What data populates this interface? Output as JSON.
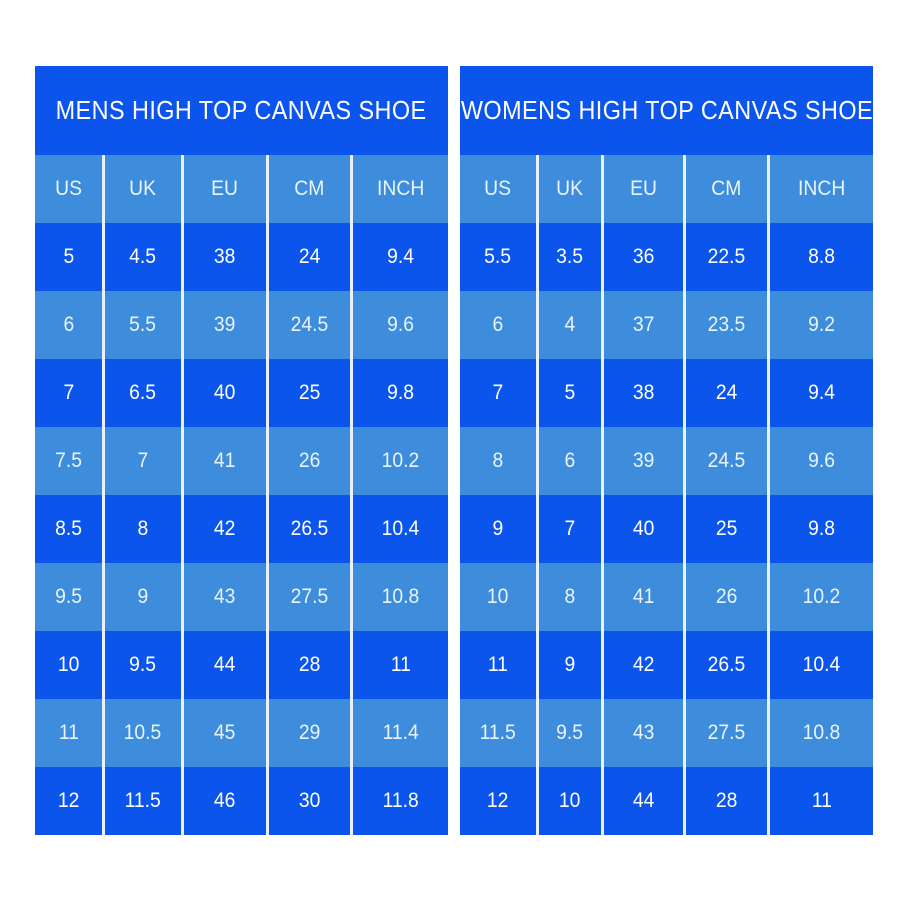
{
  "colors": {
    "background": "#ffffff",
    "dark_blue": "#0b55ec",
    "light_blue": "#3e8cdc",
    "divider": "#e9f2fc",
    "text": "#ffffff"
  },
  "tables": [
    {
      "id": "mens",
      "title": "MENS HIGH TOP CANVAS SHOE",
      "columns": [
        "US",
        "UK",
        "EU",
        "CM",
        "INCH"
      ],
      "rows": [
        [
          "5",
          "4.5",
          "38",
          "24",
          "9.4"
        ],
        [
          "6",
          "5.5",
          "39",
          "24.5",
          "9.6"
        ],
        [
          "7",
          "6.5",
          "40",
          "25",
          "9.8"
        ],
        [
          "7.5",
          "7",
          "41",
          "26",
          "10.2"
        ],
        [
          "8.5",
          "8",
          "42",
          "26.5",
          "10.4"
        ],
        [
          "9.5",
          "9",
          "43",
          "27.5",
          "10.8"
        ],
        [
          "10",
          "9.5",
          "44",
          "28",
          "11"
        ],
        [
          "11",
          "10.5",
          "45",
          "29",
          "11.4"
        ],
        [
          "12",
          "11.5",
          "46",
          "30",
          "11.8"
        ]
      ]
    },
    {
      "id": "womens",
      "title": "WOMENS HIGH TOP CANVAS SHOE",
      "columns": [
        "US",
        "UK",
        "EU",
        "CM",
        "INCH"
      ],
      "rows": [
        [
          "5.5",
          "3.5",
          "36",
          "22.5",
          "8.8"
        ],
        [
          "6",
          "4",
          "37",
          "23.5",
          "9.2"
        ],
        [
          "7",
          "5",
          "38",
          "24",
          "9.4"
        ],
        [
          "8",
          "6",
          "39",
          "24.5",
          "9.6"
        ],
        [
          "9",
          "7",
          "40",
          "25",
          "9.8"
        ],
        [
          "10",
          "8",
          "41",
          "26",
          "10.2"
        ],
        [
          "11",
          "9",
          "42",
          "26.5",
          "10.4"
        ],
        [
          "11.5",
          "9.5",
          "43",
          "27.5",
          "10.8"
        ],
        [
          "12",
          "10",
          "44",
          "28",
          "11"
        ]
      ]
    }
  ]
}
